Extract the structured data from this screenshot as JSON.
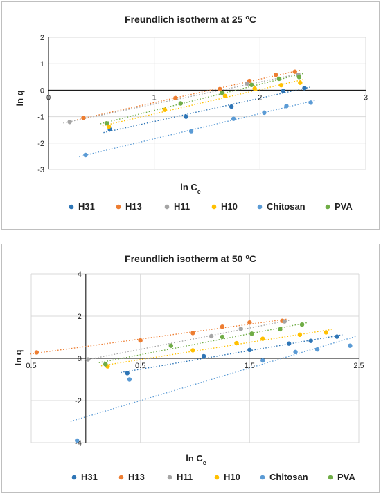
{
  "chart_data": [
    {
      "type": "scatter",
      "title": "Freundlich isotherm at 25 °C",
      "title_main": "Freundlich isotherm at 25 ",
      "title_deg": "o",
      "title_unit": "C",
      "xlabel": "ln C",
      "xlabel_sub": "e",
      "ylabel": "ln q",
      "xlim": [
        0,
        3
      ],
      "ylim": [
        -3,
        2
      ],
      "xticks": [
        "0",
        "1",
        "2",
        "3"
      ],
      "yticks": [
        "2",
        "1",
        "0",
        "-1",
        "-2",
        "-3"
      ],
      "grid": true,
      "trendlines": "dotted linear",
      "legend": "bottom",
      "series": [
        {
          "name": "H31",
          "color": "#2e75b6",
          "points": [
            [
              0.58,
              -1.48
            ],
            [
              1.3,
              -1.0
            ],
            [
              1.73,
              -0.62
            ],
            [
              2.22,
              -0.03
            ],
            [
              2.42,
              0.08
            ]
          ]
        },
        {
          "name": "H13",
          "color": "#ed7d31",
          "points": [
            [
              0.33,
              -1.05
            ],
            [
              1.2,
              -0.3
            ],
            [
              1.62,
              0.04
            ],
            [
              1.9,
              0.35
            ],
            [
              2.15,
              0.58
            ],
            [
              2.33,
              0.7
            ]
          ]
        },
        {
          "name": "H11",
          "color": "#a5a5a5",
          "points": [
            [
              0.2,
              -1.2
            ],
            [
              1.88,
              0.25
            ],
            [
              2.36,
              0.58
            ]
          ]
        },
        {
          "name": "H10",
          "color": "#ffc000",
          "points": [
            [
              0.57,
              -1.38
            ],
            [
              1.1,
              -0.74
            ],
            [
              1.67,
              -0.22
            ],
            [
              1.95,
              0.06
            ],
            [
              2.2,
              0.19
            ],
            [
              2.38,
              0.28
            ]
          ]
        },
        {
          "name": "Chitosan",
          "color": "#5b9bd5",
          "points": [
            [
              0.35,
              -2.45
            ],
            [
              1.35,
              -1.55
            ],
            [
              1.75,
              -1.08
            ],
            [
              2.04,
              -0.85
            ],
            [
              2.25,
              -0.6
            ],
            [
              2.48,
              -0.47
            ]
          ]
        },
        {
          "name": "PVA",
          "color": "#70ad47",
          "points": [
            [
              0.55,
              -1.25
            ],
            [
              1.25,
              -0.5
            ],
            [
              1.64,
              -0.1
            ],
            [
              1.92,
              0.2
            ],
            [
              2.18,
              0.43
            ],
            [
              2.37,
              0.5
            ]
          ]
        }
      ]
    },
    {
      "type": "scatter",
      "title": "Freundlich isotherm at 50 °C",
      "title_main": "Freundlich isotherm at 50 ",
      "title_deg": "o",
      "title_unit": "C",
      "xlabel": "ln C",
      "xlabel_sub": "e",
      "ylabel": "ln q",
      "xlim": [
        -0.5,
        2.5
      ],
      "ylim": [
        -4,
        4
      ],
      "xticks": [
        "0.5",
        "0.5",
        "1.5",
        "2.5"
      ],
      "yticks": [
        "4",
        "2",
        "0",
        "-2",
        "-4"
      ],
      "grid": true,
      "trendlines": "dotted linear",
      "legend": "bottom",
      "series": [
        {
          "name": "H31",
          "color": "#2e75b6",
          "points": [
            [
              0.38,
              -0.7
            ],
            [
              1.08,
              0.1
            ],
            [
              1.5,
              0.4
            ],
            [
              1.86,
              0.7
            ],
            [
              2.06,
              0.83
            ],
            [
              2.3,
              1.03
            ]
          ]
        },
        {
          "name": "H13",
          "color": "#ed7d31",
          "points": [
            [
              -0.45,
              0.28
            ],
            [
              0.5,
              0.85
            ],
            [
              0.98,
              1.2
            ],
            [
              1.25,
              1.5
            ],
            [
              1.5,
              1.7
            ],
            [
              1.8,
              1.78
            ]
          ]
        },
        {
          "name": "H11",
          "color": "#a5a5a5",
          "points": [
            [
              0.02,
              -0.05
            ],
            [
              1.15,
              1.05
            ],
            [
              1.42,
              1.4
            ],
            [
              1.82,
              1.75
            ]
          ]
        },
        {
          "name": "H10",
          "color": "#ffc000",
          "points": [
            [
              0.2,
              -0.38
            ],
            [
              0.98,
              0.38
            ],
            [
              1.38,
              0.72
            ],
            [
              1.62,
              0.93
            ],
            [
              1.96,
              1.12
            ],
            [
              2.2,
              1.23
            ]
          ]
        },
        {
          "name": "Chitosan",
          "color": "#5b9bd5",
          "points": [
            [
              -0.08,
              -3.9
            ],
            [
              0.4,
              -1.0
            ],
            [
              1.62,
              -0.1
            ],
            [
              1.92,
              0.3
            ],
            [
              2.12,
              0.42
            ],
            [
              2.42,
              0.6
            ]
          ]
        },
        {
          "name": "PVA",
          "color": "#70ad47",
          "points": [
            [
              0.18,
              -0.28
            ],
            [
              0.78,
              0.6
            ],
            [
              1.25,
              1.02
            ],
            [
              1.52,
              1.17
            ],
            [
              1.78,
              1.38
            ],
            [
              1.98,
              1.6
            ]
          ]
        }
      ]
    }
  ]
}
